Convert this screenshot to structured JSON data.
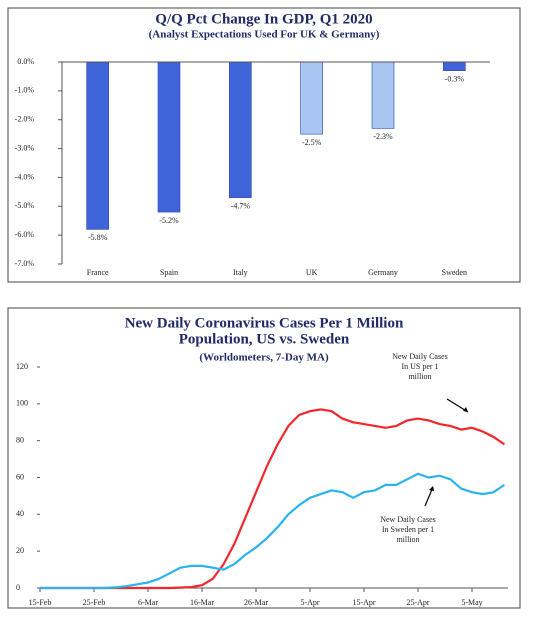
{
  "chart_data": [
    {
      "type": "bar",
      "title": "Q/Q Pct Change In GDP, Q1 2020",
      "subtitle": "(Analyst Expectations Used For UK & Germany)",
      "categories": [
        "France",
        "Spain",
        "Italy",
        "UK",
        "Germany",
        "Sweden"
      ],
      "values": [
        -5.8,
        -5.2,
        -4.7,
        -2.5,
        -2.3,
        -0.3
      ],
      "value_labels": [
        "-5.8%",
        "-5.2%",
        "-4.7%",
        "-2.5%",
        "-2.3%",
        "-0.3%"
      ],
      "colors": [
        "#3f63d8",
        "#3f63d8",
        "#3f63d8",
        "#a9c6f2",
        "#a9c6f2",
        "#3f63d8"
      ],
      "ylim": [
        -7,
        0
      ],
      "yticks": [
        {
          "value": 0,
          "label": "0.0%"
        },
        {
          "value": -1,
          "label": "-1.0%"
        },
        {
          "value": -2,
          "label": "-2.0%"
        },
        {
          "value": -3,
          "label": "-3.0%"
        },
        {
          "value": -4,
          "label": "-4.0%"
        },
        {
          "value": -5,
          "label": "-5.0%"
        },
        {
          "value": -6,
          "label": "-6.0%"
        },
        {
          "value": -7,
          "label": "-7.0%"
        }
      ],
      "grid": false
    },
    {
      "type": "line",
      "title": [
        "New Daily Coronavirus Cases Per 1 Million",
        "Population, US vs. Sweden"
      ],
      "subtitle": "(Worldometers, 7-Day MA)",
      "x": [
        "15-Feb",
        "17-Feb",
        "19-Feb",
        "21-Feb",
        "23-Feb",
        "25-Feb",
        "27-Feb",
        "29-Feb",
        "2-Mar",
        "4-Mar",
        "6-Mar",
        "8-Mar",
        "10-Mar",
        "12-Mar",
        "14-Mar",
        "16-Mar",
        "18-Mar",
        "20-Mar",
        "22-Mar",
        "24-Mar",
        "26-Mar",
        "28-Mar",
        "30-Mar",
        "1-Apr",
        "3-Apr",
        "5-Apr",
        "7-Apr",
        "9-Apr",
        "11-Apr",
        "13-Apr",
        "15-Apr",
        "17-Apr",
        "19-Apr",
        "21-Apr",
        "23-Apr",
        "25-Apr",
        "27-Apr",
        "29-Apr",
        "1-May",
        "3-May",
        "5-May",
        "7-May",
        "9-May",
        "11-May"
      ],
      "series": [
        {
          "color": "#f2262b",
          "values": [
            0,
            0,
            0,
            0,
            0,
            0,
            0,
            0,
            0,
            0,
            0,
            0,
            0,
            0.2,
            0.5,
            1.5,
            5,
            13,
            24,
            38,
            52,
            66,
            78,
            88,
            94,
            96,
            97,
            96,
            92,
            90,
            89,
            88,
            87,
            88,
            91,
            92,
            91,
            89,
            88,
            86,
            87,
            85,
            82,
            78
          ]
        },
        {
          "color": "#2bb3ec",
          "values": [
            0,
            0,
            0,
            0,
            0,
            0,
            0,
            0.3,
            1,
            2,
            3,
            5,
            8,
            11,
            12,
            12,
            11,
            10,
            13,
            18,
            22,
            27,
            33,
            40,
            45,
            49,
            51,
            53,
            52,
            49,
            52,
            53,
            56,
            56,
            59,
            62,
            60,
            61,
            59,
            54,
            52,
            51,
            52,
            56
          ]
        }
      ],
      "ylim": [
        0,
        120
      ],
      "yticks": [
        0,
        20,
        40,
        60,
        80,
        100,
        120
      ],
      "xticks": [
        "15-Feb",
        "25-Feb",
        "6-Mar",
        "16-Mar",
        "26-Mar",
        "5-Apr",
        "15-Apr",
        "25-Apr",
        "5-May"
      ],
      "annotations": [
        {
          "lines": [
            "New Daily Cases",
            "In US per 1",
            "million"
          ]
        },
        {
          "lines": [
            "New Daily Cases",
            "In Sweden per 1",
            "million"
          ]
        }
      ]
    }
  ]
}
